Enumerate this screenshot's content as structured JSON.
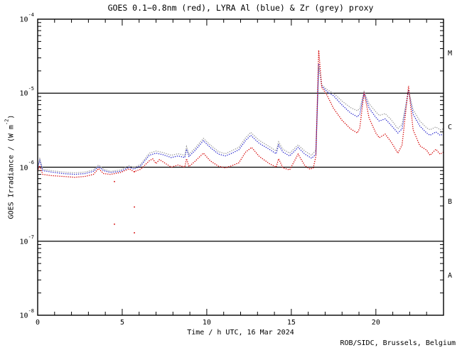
{
  "title": "GOES 0.1−0.8nm (red), LYRA Al (blue) & Zr (grey) proxy",
  "footer": "ROB/SIDC, Brussels, Belgium",
  "chart_data": {
    "type": "line",
    "title": "GOES 0.1−0.8nm (red), LYRA Al (blue) & Zr (grey) proxy",
    "xlabel": "Time / h UTC, 16 Mar 2024",
    "ylabel": {
      "pre": "GOES Irradiance / (W m",
      "exp": "-2",
      "post": ")"
    },
    "xlim": [
      0,
      24
    ],
    "ylog_lim": [
      -8,
      -4
    ],
    "x_minor_step": 1,
    "x_major_step": 5,
    "grid": "decade horizontal lines at 1e-5, 1e-6, 1e-7",
    "legend_position": "encoded in title",
    "x_ticks": [
      {
        "value": 0,
        "label": "0"
      },
      {
        "value": 5,
        "label": "5"
      },
      {
        "value": 10,
        "label": "10"
      },
      {
        "value": 15,
        "label": "15"
      },
      {
        "value": 20,
        "label": "20"
      }
    ],
    "y_ticks": [
      {
        "log": -4,
        "base": "10",
        "exp": "-4"
      },
      {
        "log": -5,
        "base": "10",
        "exp": "-5"
      },
      {
        "log": -6,
        "base": "10",
        "exp": "-6"
      },
      {
        "log": -7,
        "base": "10",
        "exp": "-7"
      },
      {
        "log": -8,
        "base": "10",
        "exp": "-8"
      }
    ],
    "hlines_log": [
      -5,
      -6,
      -7
    ],
    "flare_classes": [
      {
        "label": "M"
      },
      {
        "label": "C"
      },
      {
        "label": "B"
      },
      {
        "label": "A"
      }
    ],
    "series": [
      {
        "name": "LYRA Al proxy",
        "color": "#2222cc",
        "points": [
          [
            0,
            9.6e-07
          ],
          [
            0.12,
            1.25e-06
          ],
          [
            0.3,
            9e-07
          ],
          [
            0.8,
            8.6e-07
          ],
          [
            1.5,
            8.2e-07
          ],
          [
            2.2,
            8e-07
          ],
          [
            2.8,
            8.2e-07
          ],
          [
            3.3,
            8.8e-07
          ],
          [
            3.6,
            1.02e-06
          ],
          [
            3.9,
            9e-07
          ],
          [
            4.3,
            8.5e-07
          ],
          [
            4.9,
            8.8e-07
          ],
          [
            5.4,
            1e-06
          ],
          [
            5.7,
            9.4e-07
          ],
          [
            6.1,
            1.05e-06
          ],
          [
            6.6,
            1.45e-06
          ],
          [
            7.0,
            1.55e-06
          ],
          [
            7.4,
            1.48e-06
          ],
          [
            7.9,
            1.35e-06
          ],
          [
            8.3,
            1.42e-06
          ],
          [
            8.7,
            1.35e-06
          ],
          [
            8.8,
            1.75e-06
          ],
          [
            8.95,
            1.4e-06
          ],
          [
            9.3,
            1.68e-06
          ],
          [
            9.8,
            2.28e-06
          ],
          [
            10.2,
            1.85e-06
          ],
          [
            10.7,
            1.5e-06
          ],
          [
            11.1,
            1.42e-06
          ],
          [
            11.5,
            1.55e-06
          ],
          [
            11.9,
            1.72e-06
          ],
          [
            12.3,
            2.3e-06
          ],
          [
            12.6,
            2.7e-06
          ],
          [
            13.1,
            2.1e-06
          ],
          [
            13.7,
            1.75e-06
          ],
          [
            14.1,
            1.52e-06
          ],
          [
            14.25,
            2e-06
          ],
          [
            14.5,
            1.6e-06
          ],
          [
            14.9,
            1.42e-06
          ],
          [
            15.4,
            1.85e-06
          ],
          [
            15.8,
            1.5e-06
          ],
          [
            16.2,
            1.32e-06
          ],
          [
            16.45,
            1.5e-06
          ],
          [
            16.62,
            2.5e-05
          ],
          [
            16.8,
            1.25e-05
          ],
          [
            17.1,
            1.05e-05
          ],
          [
            17.5,
            9.2e-06
          ],
          [
            18.0,
            6.9e-06
          ],
          [
            18.5,
            5.4e-06
          ],
          [
            18.9,
            4.8e-06
          ],
          [
            19.05,
            5.2e-06
          ],
          [
            19.3,
            1e-05
          ],
          [
            19.6,
            6.3e-06
          ],
          [
            20.0,
            4.7e-06
          ],
          [
            20.2,
            4.2e-06
          ],
          [
            20.55,
            4.5e-06
          ],
          [
            20.9,
            3.7e-06
          ],
          [
            21.3,
            2.9e-06
          ],
          [
            21.55,
            3.3e-06
          ],
          [
            21.93,
            1.1e-05
          ],
          [
            22.2,
            5.2e-06
          ],
          [
            22.6,
            3.6e-06
          ],
          [
            23.0,
            2.9e-06
          ],
          [
            23.2,
            2.7e-06
          ],
          [
            23.55,
            3e-06
          ],
          [
            23.8,
            2.7e-06
          ],
          [
            24,
            2.8e-06
          ]
        ]
      },
      {
        "name": "LYRA Zr proxy",
        "color": "#999999",
        "points": [
          [
            0,
            1e-06
          ],
          [
            0.12,
            1.3e-06
          ],
          [
            0.3,
            9.4e-07
          ],
          [
            0.8,
            9e-07
          ],
          [
            1.5,
            8.6e-07
          ],
          [
            2.2,
            8.4e-07
          ],
          [
            2.8,
            8.6e-07
          ],
          [
            3.3,
            9.2e-07
          ],
          [
            3.6,
            1.07e-06
          ],
          [
            3.9,
            9.4e-07
          ],
          [
            4.3,
            8.8e-07
          ],
          [
            4.9,
            9.2e-07
          ],
          [
            5.4,
            1.05e-06
          ],
          [
            5.7,
            9.8e-07
          ],
          [
            6.1,
            1.1e-06
          ],
          [
            6.6,
            1.55e-06
          ],
          [
            7.0,
            1.65e-06
          ],
          [
            7.4,
            1.58e-06
          ],
          [
            7.9,
            1.45e-06
          ],
          [
            8.3,
            1.52e-06
          ],
          [
            8.7,
            1.45e-06
          ],
          [
            8.8,
            1.9e-06
          ],
          [
            8.95,
            1.5e-06
          ],
          [
            9.3,
            1.8e-06
          ],
          [
            9.8,
            2.45e-06
          ],
          [
            10.2,
            2e-06
          ],
          [
            10.7,
            1.62e-06
          ],
          [
            11.1,
            1.52e-06
          ],
          [
            11.5,
            1.68e-06
          ],
          [
            11.9,
            1.85e-06
          ],
          [
            12.3,
            2.5e-06
          ],
          [
            12.6,
            2.95e-06
          ],
          [
            13.1,
            2.3e-06
          ],
          [
            13.7,
            1.9e-06
          ],
          [
            14.1,
            1.65e-06
          ],
          [
            14.25,
            2.2e-06
          ],
          [
            14.5,
            1.75e-06
          ],
          [
            14.9,
            1.55e-06
          ],
          [
            15.4,
            2e-06
          ],
          [
            15.8,
            1.65e-06
          ],
          [
            16.2,
            1.45e-06
          ],
          [
            16.45,
            1.7e-06
          ],
          [
            16.62,
            2.3e-05
          ],
          [
            16.8,
            1.3e-05
          ],
          [
            17.1,
            1.12e-05
          ],
          [
            17.5,
            1e-05
          ],
          [
            18.0,
            7.8e-06
          ],
          [
            18.5,
            6.4e-06
          ],
          [
            18.9,
            5.8e-06
          ],
          [
            19.05,
            6.2e-06
          ],
          [
            19.3,
            1.05e-05
          ],
          [
            19.6,
            7.2e-06
          ],
          [
            20.0,
            5.6e-06
          ],
          [
            20.2,
            5e-06
          ],
          [
            20.55,
            5.3e-06
          ],
          [
            20.9,
            4.4e-06
          ],
          [
            21.3,
            3.3e-06
          ],
          [
            21.55,
            3.8e-06
          ],
          [
            21.93,
            1.08e-05
          ],
          [
            22.2,
            6e-06
          ],
          [
            22.6,
            4.2e-06
          ],
          [
            23.0,
            3.4e-06
          ],
          [
            23.2,
            3.2e-06
          ],
          [
            23.55,
            3.5e-06
          ],
          [
            23.8,
            3.2e-06
          ],
          [
            24,
            3.3e-06
          ]
        ]
      },
      {
        "name": "GOES 0.1-0.8nm",
        "color": "#d40000",
        "points": [
          [
            0,
            8.8e-07
          ],
          [
            0.12,
            1.05e-06
          ],
          [
            0.3,
            8e-07
          ],
          [
            0.8,
            7.7e-07
          ],
          [
            1.5,
            7.5e-07
          ],
          [
            2.2,
            7.3e-07
          ],
          [
            2.8,
            7.5e-07
          ],
          [
            3.3,
            8e-07
          ],
          [
            3.6,
            9.6e-07
          ],
          [
            3.9,
            8.2e-07
          ],
          [
            4.3,
            8e-07
          ],
          [
            4.9,
            8.5e-07
          ],
          [
            5.4,
            9.5e-07
          ],
          [
            5.7,
            8.7e-07
          ],
          [
            6.1,
            9.4e-07
          ],
          [
            6.6,
            1.22e-06
          ],
          [
            6.8,
            1.3e-06
          ],
          [
            7.0,
            1.12e-06
          ],
          [
            7.2,
            1.27e-06
          ],
          [
            7.9,
            1e-06
          ],
          [
            8.3,
            1.07e-06
          ],
          [
            8.7,
            1e-06
          ],
          [
            8.8,
            1.3e-06
          ],
          [
            8.95,
            1.02e-06
          ],
          [
            9.3,
            1.2e-06
          ],
          [
            9.8,
            1.55e-06
          ],
          [
            10.2,
            1.22e-06
          ],
          [
            10.7,
            1.03e-06
          ],
          [
            11.1,
            9.8e-07
          ],
          [
            11.5,
            1.05e-06
          ],
          [
            11.9,
            1.15e-06
          ],
          [
            12.3,
            1.6e-06
          ],
          [
            12.65,
            1.85e-06
          ],
          [
            13.1,
            1.4e-06
          ],
          [
            13.7,
            1.12e-06
          ],
          [
            14.1,
            1e-06
          ],
          [
            14.25,
            1.3e-06
          ],
          [
            14.5,
            9.8e-07
          ],
          [
            14.9,
            9.2e-07
          ],
          [
            15.4,
            1.5e-06
          ],
          [
            15.8,
            1.05e-06
          ],
          [
            16.1,
            9.4e-07
          ],
          [
            16.3,
            9.8e-07
          ],
          [
            16.45,
            1.4e-06
          ],
          [
            16.62,
            3.8e-05
          ],
          [
            16.8,
            1.2e-05
          ],
          [
            17.1,
            9.5e-06
          ],
          [
            17.5,
            6.2e-06
          ],
          [
            18.0,
            4.3e-06
          ],
          [
            18.5,
            3.3e-06
          ],
          [
            18.9,
            2.9e-06
          ],
          [
            19.05,
            3.4e-06
          ],
          [
            19.3,
            1.03e-05
          ],
          [
            19.6,
            4.6e-06
          ],
          [
            20.0,
            2.9e-06
          ],
          [
            20.2,
            2.5e-06
          ],
          [
            20.55,
            2.8e-06
          ],
          [
            20.9,
            2.2e-06
          ],
          [
            21.3,
            1.55e-06
          ],
          [
            21.55,
            2e-06
          ],
          [
            21.93,
            1.25e-05
          ],
          [
            22.2,
            3.2e-06
          ],
          [
            22.6,
            1.95e-06
          ],
          [
            23.0,
            1.7e-06
          ],
          [
            23.2,
            1.45e-06
          ],
          [
            23.55,
            1.75e-06
          ],
          [
            23.8,
            1.5e-06
          ],
          [
            24,
            1.6e-06
          ]
        ]
      }
    ],
    "stray_points": {
      "color": "#d40000",
      "points": [
        [
          4.54,
          6.4e-07
        ],
        [
          4.54,
          1.7e-07
        ],
        [
          5.72,
          8.7e-07
        ],
        [
          5.72,
          2.9e-07
        ],
        [
          5.72,
          1.3e-07
        ]
      ]
    }
  }
}
